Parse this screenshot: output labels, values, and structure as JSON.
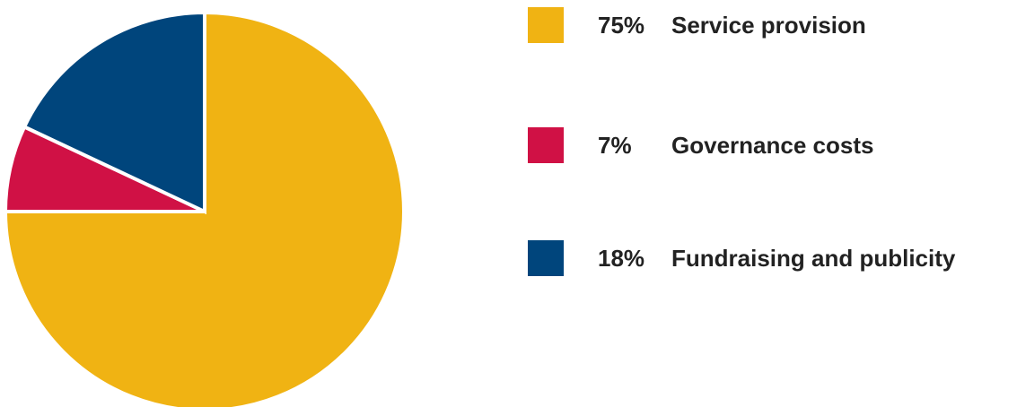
{
  "chart_data": {
    "type": "pie",
    "title": "",
    "start_angle_deg": 0,
    "direction": "clockwise",
    "legend_position": "right",
    "slices": [
      {
        "label": "Service provision",
        "pct_label": "75%",
        "value": 75,
        "color": "#F0B313"
      },
      {
        "label": "Governance costs",
        "pct_label": "7%",
        "value": 7,
        "color": "#D01145"
      },
      {
        "label": "Fundraising and publicity",
        "pct_label": "18%",
        "value": 18,
        "color": "#00457C"
      }
    ]
  }
}
